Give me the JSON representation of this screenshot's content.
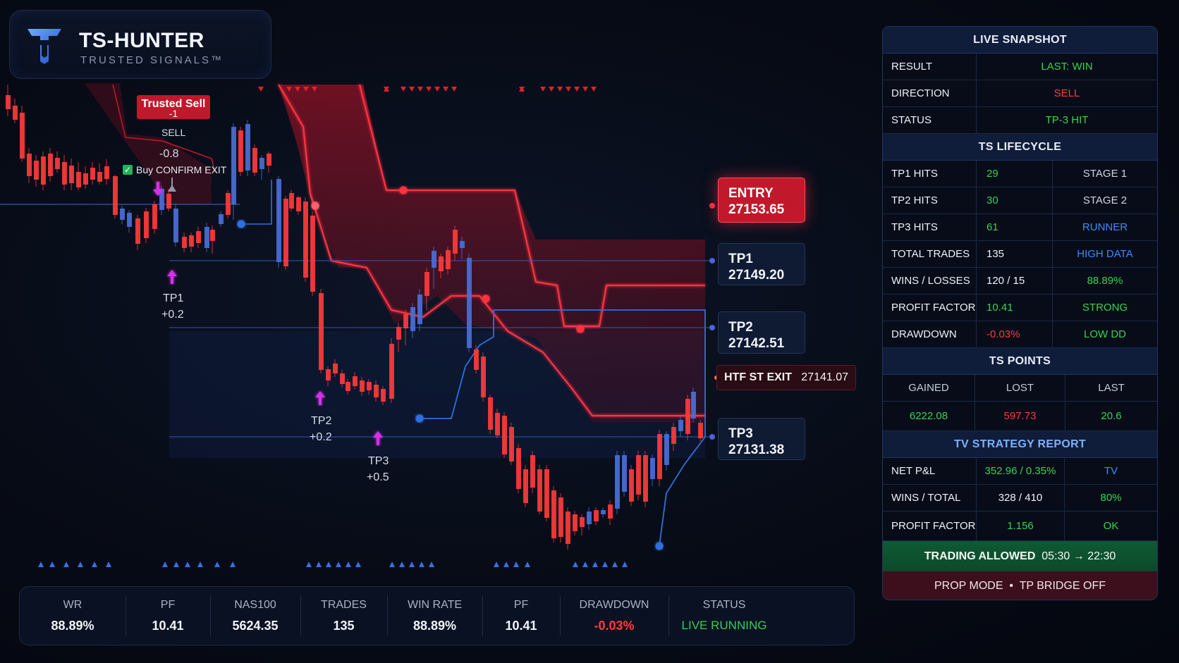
{
  "brand": {
    "title": "TS-HUNTER",
    "subtitle": "TRUSTED SIGNALS™"
  },
  "chart": {
    "levels": {
      "entry": {
        "label": "ENTRY",
        "value": "27153.65"
      },
      "tp1": {
        "label": "TP1",
        "value": "27149.20"
      },
      "tp2": {
        "label": "TP2",
        "value": "27142.51"
      },
      "tp3": {
        "label": "TP3",
        "value": "27131.38"
      },
      "htf_exit": {
        "label": "HTF ST EXIT",
        "value": "27141.07"
      }
    },
    "signal": {
      "title": "Trusted Sell",
      "count": "-1",
      "direction": "SELL",
      "score": "-0.8",
      "confirm": "Buy CONFIRM EXIT"
    },
    "tp_markers": [
      {
        "label": "TP1",
        "gain": "+0.2"
      },
      {
        "label": "TP2",
        "gain": "+0.2"
      },
      {
        "label": "TP3",
        "gain": "+0.5"
      }
    ],
    "colors": {
      "bull": "#4a6fd8",
      "bear": "#ff3b3b",
      "cloud": "#c0142a",
      "accent": "#3d8bff"
    }
  },
  "stats": [
    {
      "label": "WR",
      "value": "88.89%"
    },
    {
      "label": "PF",
      "value": "10.41"
    },
    {
      "label": "NAS100",
      "value": "5624.35"
    },
    {
      "label": "TRADES",
      "value": "135"
    },
    {
      "label": "WIN RATE",
      "value": "88.89%"
    },
    {
      "label": "PF",
      "value": "10.41"
    },
    {
      "label": "DRAWDOWN",
      "value": "-0.03%"
    },
    {
      "label": "STATUS",
      "value": "LIVE RUNNING"
    }
  ],
  "panel": {
    "live_snapshot": {
      "title": "LIVE SNAPSHOT",
      "rows": [
        {
          "label": "RESULT",
          "value": "LAST: WIN"
        },
        {
          "label": "DIRECTION",
          "value": "SELL"
        },
        {
          "label": "STATUS",
          "value": "TP-3 HIT"
        }
      ]
    },
    "lifecycle": {
      "title": "TS LIFECYCLE",
      "rows": [
        {
          "label": "TP1 HITS",
          "value": "29",
          "note": "STAGE 1"
        },
        {
          "label": "TP2 HITS",
          "value": "30",
          "note": "STAGE 2"
        },
        {
          "label": "TP3 HITS",
          "value": "61",
          "note": "RUNNER"
        },
        {
          "label": "TOTAL TRADES",
          "value": "135",
          "note": "HIGH DATA"
        },
        {
          "label": "WINS / LOSSES",
          "value": "120 / 15",
          "note": "88.89%"
        },
        {
          "label": "PROFIT FACTOR",
          "value": "10.41",
          "note": "STRONG"
        },
        {
          "label": "DRAWDOWN",
          "value": "-0.03%",
          "note": "LOW DD"
        }
      ]
    },
    "points": {
      "title": "TS POINTS",
      "headers": [
        "GAINED",
        "LOST",
        "LAST"
      ],
      "values": [
        "6222.08",
        "597.73",
        "20.6"
      ]
    },
    "tv_report": {
      "title": "TV STRATEGY REPORT",
      "rows": [
        {
          "label": "NET P&L",
          "value": "352.96 / 0.35%",
          "note": "TV"
        },
        {
          "label": "WINS / TOTAL",
          "value": "328 / 410",
          "note": "80%"
        },
        {
          "label": "PROFIT FACTOR",
          "value": "1.156",
          "note": "OK"
        }
      ]
    },
    "trading": {
      "label": "TRADING ALLOWED",
      "window": "05:30 → 22:30"
    },
    "prop": {
      "mode": "PROP MODE",
      "sep": "•",
      "bridge": "TP BRIDGE  OFF"
    }
  }
}
